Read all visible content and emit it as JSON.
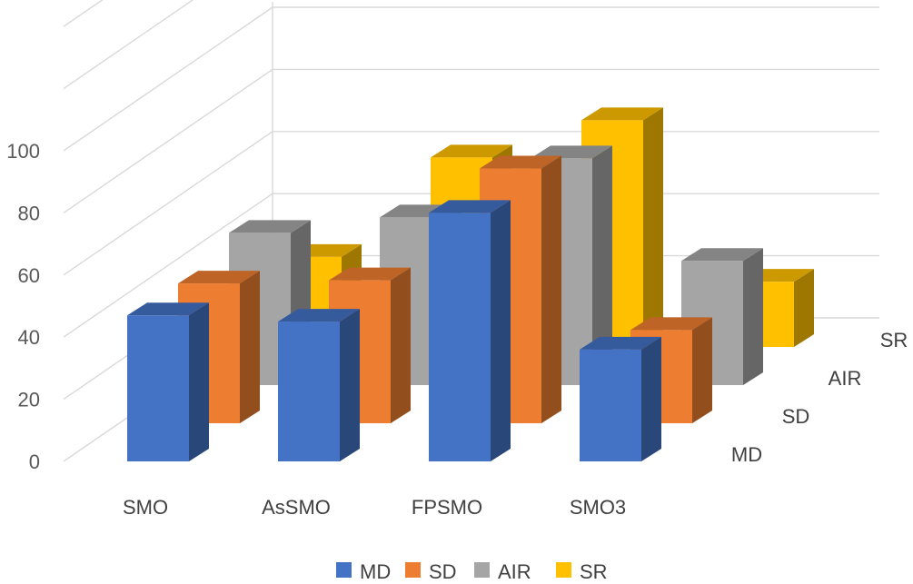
{
  "chart_data": {
    "type": "bar",
    "subtype": "3d-column",
    "title": "",
    "xlabel": "",
    "ylabel": "",
    "ylim": [
      0,
      100
    ],
    "yticks": [
      0,
      20,
      40,
      60,
      80,
      100
    ],
    "grid": true,
    "legend_position": "bottom",
    "categories": [
      "SMO",
      "AsSMO",
      "FPSMO",
      "SMO3"
    ],
    "series": [
      {
        "name": "MD",
        "color": "#4472C4",
        "values": [
          47,
          45,
          80,
          36
        ]
      },
      {
        "name": "SD",
        "color": "#ED7D31",
        "values": [
          45,
          46,
          82,
          30
        ]
      },
      {
        "name": "AIR",
        "color": "#A5A5A5",
        "values": [
          49,
          54,
          73,
          40
        ]
      },
      {
        "name": "SR",
        "color": "#FFC000",
        "values": [
          29,
          61,
          73,
          21
        ]
      }
    ]
  }
}
